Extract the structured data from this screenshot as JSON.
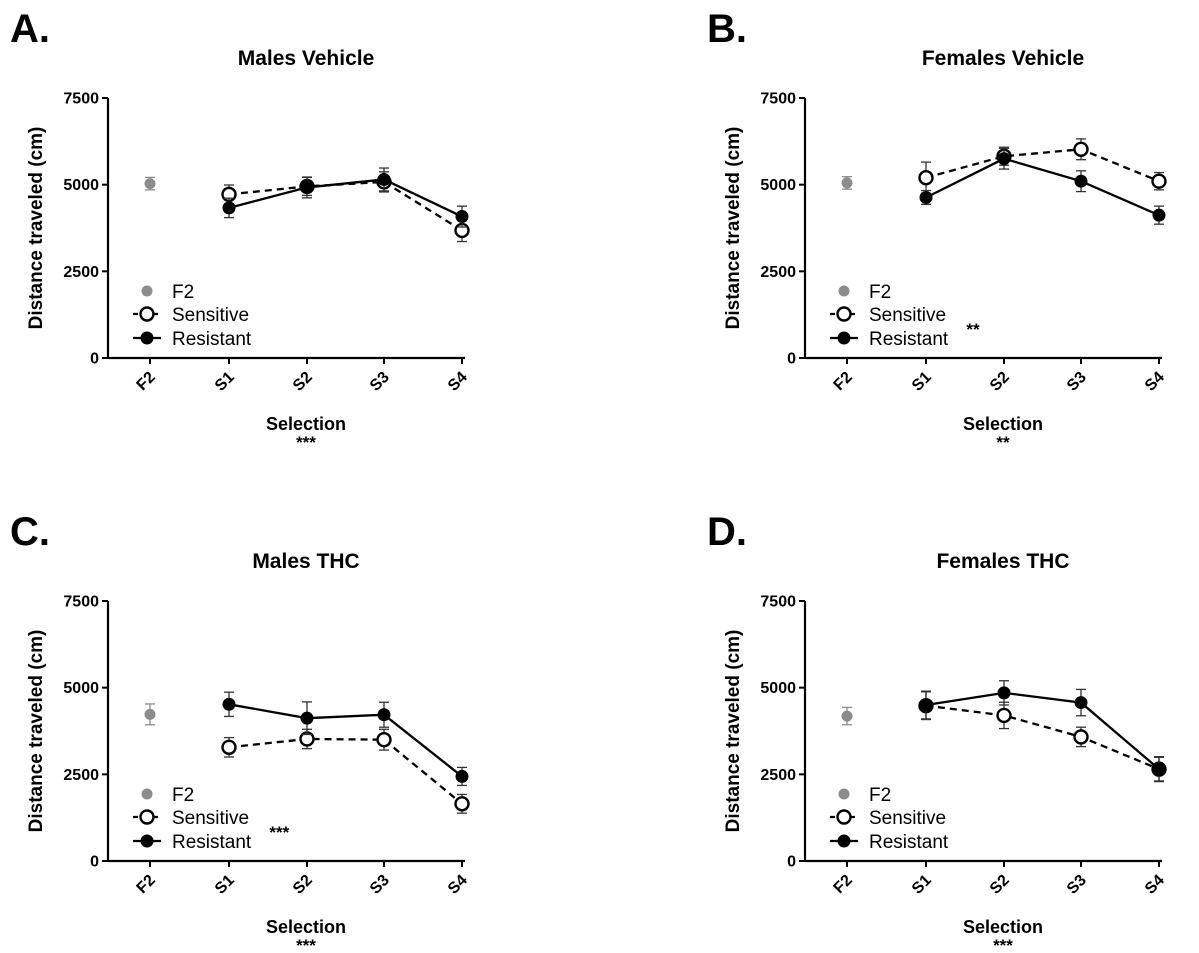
{
  "chart_data": [
    {
      "panel": "A.",
      "type": "line",
      "title": "Males Vehicle",
      "xlabel": "Selection",
      "xlabel_sig": "***",
      "ylabel": "Distance traveled (cm)",
      "ylim": [
        0,
        7500
      ],
      "yticks": [
        "0",
        "2500",
        "5000",
        "7500"
      ],
      "categories": [
        "F2",
        "S1",
        "S2",
        "S3",
        "S4"
      ],
      "legend": {
        "position": "bottom-left",
        "sig": ""
      },
      "series": [
        {
          "name": "F2",
          "style": "gray-dot",
          "color": "#8c8c8c",
          "x": [
            "F2"
          ],
          "values": [
            5030
          ],
          "errors": [
            180
          ]
        },
        {
          "name": "Sensitive",
          "style": "open-dashed",
          "color": "#000000",
          "x": [
            "S1",
            "S2",
            "S3",
            "S4"
          ],
          "values": [
            4720,
            4950,
            5080,
            3680
          ],
          "errors": [
            270,
            260,
            290,
            320
          ]
        },
        {
          "name": "Resistant",
          "style": "filled-solid",
          "color": "#000000",
          "x": [
            "S1",
            "S2",
            "S3",
            "S4"
          ],
          "values": [
            4330,
            4920,
            5150,
            4080
          ],
          "errors": [
            280,
            300,
            330,
            300
          ]
        }
      ]
    },
    {
      "panel": "B.",
      "type": "line",
      "title": "Females Vehicle",
      "xlabel": "Selection",
      "xlabel_sig": "**",
      "ylabel": "Distance traveled (cm)",
      "ylim": [
        0,
        7500
      ],
      "yticks": [
        "0",
        "2500",
        "5000",
        "7500"
      ],
      "categories": [
        "F2",
        "S1",
        "S2",
        "S3",
        "S4"
      ],
      "legend": {
        "position": "bottom-left",
        "sig": "**"
      },
      "series": [
        {
          "name": "F2",
          "style": "gray-dot",
          "color": "#8c8c8c",
          "x": [
            "F2"
          ],
          "values": [
            5050
          ],
          "errors": [
            180
          ]
        },
        {
          "name": "Sensitive",
          "style": "open-dashed",
          "color": "#000000",
          "x": [
            "S1",
            "S2",
            "S3",
            "S4"
          ],
          "values": [
            5200,
            5820,
            6020,
            5100
          ],
          "errors": [
            450,
            260,
            300,
            250
          ]
        },
        {
          "name": "Resistant",
          "style": "filled-solid",
          "color": "#000000",
          "x": [
            "S1",
            "S2",
            "S3",
            "S4"
          ],
          "values": [
            4630,
            5750,
            5100,
            4120
          ],
          "errors": [
            200,
            300,
            300,
            260
          ]
        }
      ]
    },
    {
      "panel": "C.",
      "type": "line",
      "title": "Males THC",
      "xlabel": "Selection",
      "xlabel_sig": "***",
      "ylabel": "Distance traveled (cm)",
      "ylim": [
        0,
        7500
      ],
      "yticks": [
        "0",
        "2500",
        "5000",
        "7500"
      ],
      "categories": [
        "F2",
        "S1",
        "S2",
        "S3",
        "S4"
      ],
      "legend": {
        "position": "bottom-left",
        "sig": "***"
      },
      "series": [
        {
          "name": "F2",
          "style": "gray-dot",
          "color": "#8c8c8c",
          "x": [
            "F2"
          ],
          "values": [
            4230
          ],
          "errors": [
            300
          ]
        },
        {
          "name": "Sensitive",
          "style": "open-dashed",
          "color": "#000000",
          "x": [
            "S1",
            "S2",
            "S3",
            "S4"
          ],
          "values": [
            3280,
            3520,
            3500,
            1650
          ],
          "errors": [
            280,
            280,
            300,
            270
          ]
        },
        {
          "name": "Resistant",
          "style": "filled-solid",
          "color": "#000000",
          "x": [
            "S1",
            "S2",
            "S3",
            "S4"
          ],
          "values": [
            4520,
            4120,
            4220,
            2440
          ],
          "errors": [
            350,
            470,
            360,
            260
          ]
        }
      ]
    },
    {
      "panel": "D.",
      "type": "line",
      "title": "Females THC",
      "xlabel": "Selection",
      "xlabel_sig": "***",
      "ylabel": "Distance traveled (cm)",
      "ylim": [
        0,
        7500
      ],
      "yticks": [
        "0",
        "2500",
        "5000",
        "7500"
      ],
      "categories": [
        "F2",
        "S1",
        "S2",
        "S3",
        "S4"
      ],
      "legend": {
        "position": "bottom-left",
        "sig": ""
      },
      "series": [
        {
          "name": "F2",
          "style": "gray-dot",
          "color": "#8c8c8c",
          "x": [
            "F2"
          ],
          "values": [
            4180
          ],
          "errors": [
            250
          ]
        },
        {
          "name": "Sensitive",
          "style": "open-dashed",
          "color": "#000000",
          "x": [
            "S1",
            "S2",
            "S3",
            "S4"
          ],
          "values": [
            4480,
            4200,
            3580,
            2650
          ],
          "errors": [
            400,
            380,
            280,
            340
          ]
        },
        {
          "name": "Resistant",
          "style": "filled-solid",
          "color": "#000000",
          "x": [
            "S1",
            "S2",
            "S3",
            "S4"
          ],
          "values": [
            4500,
            4850,
            4570,
            2650
          ],
          "errors": [
            400,
            350,
            380,
            360
          ]
        }
      ]
    }
  ]
}
